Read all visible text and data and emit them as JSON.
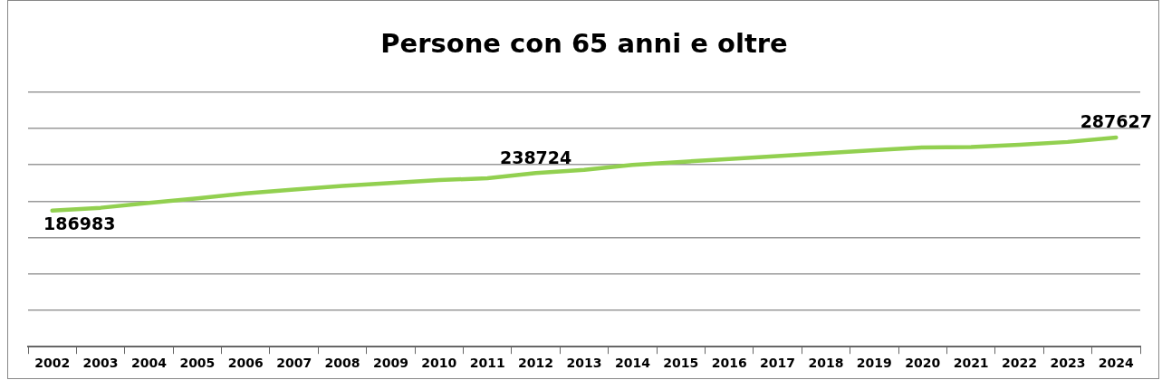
{
  "chart_data": {
    "type": "line",
    "title": "Persone con 65 anni e oltre",
    "categories": [
      "2002",
      "2003",
      "2004",
      "2005",
      "2006",
      "2007",
      "2008",
      "2009",
      "2010",
      "2011",
      "2012",
      "2013",
      "2014",
      "2015",
      "2016",
      "2017",
      "2018",
      "2019",
      "2020",
      "2021",
      "2022",
      "2023",
      "2024"
    ],
    "series": [
      {
        "color": "#92d050",
        "values": [
          186983,
          191000,
          197600,
          204000,
          210700,
          216000,
          221000,
          225000,
          229000,
          231700,
          238724,
          243000,
          250000,
          254000,
          258000,
          262000,
          266000,
          270000,
          274000,
          274500,
          277500,
          281500,
          287627
        ],
        "value_labels": [
          "186983",
          null,
          null,
          null,
          null,
          null,
          null,
          null,
          null,
          null,
          "238724",
          null,
          null,
          null,
          null,
          null,
          null,
          null,
          null,
          null,
          null,
          null,
          "287627"
        ]
      }
    ],
    "ylim": [
      0,
      350000
    ],
    "yticks": [
      {
        "value": 0,
        "label": null
      },
      {
        "value": 50000,
        "label": null
      },
      {
        "value": 100000,
        "label": null
      },
      {
        "value": 150000,
        "label": null
      },
      {
        "value": 200000,
        "label": null
      },
      {
        "value": 250000,
        "label": null
      },
      {
        "value": 300000,
        "label": null
      },
      {
        "value": 350000,
        "label": null
      }
    ],
    "grid": "y",
    "tick_labels": "x",
    "legend": false,
    "marker": "none",
    "line_style": "solid"
  }
}
